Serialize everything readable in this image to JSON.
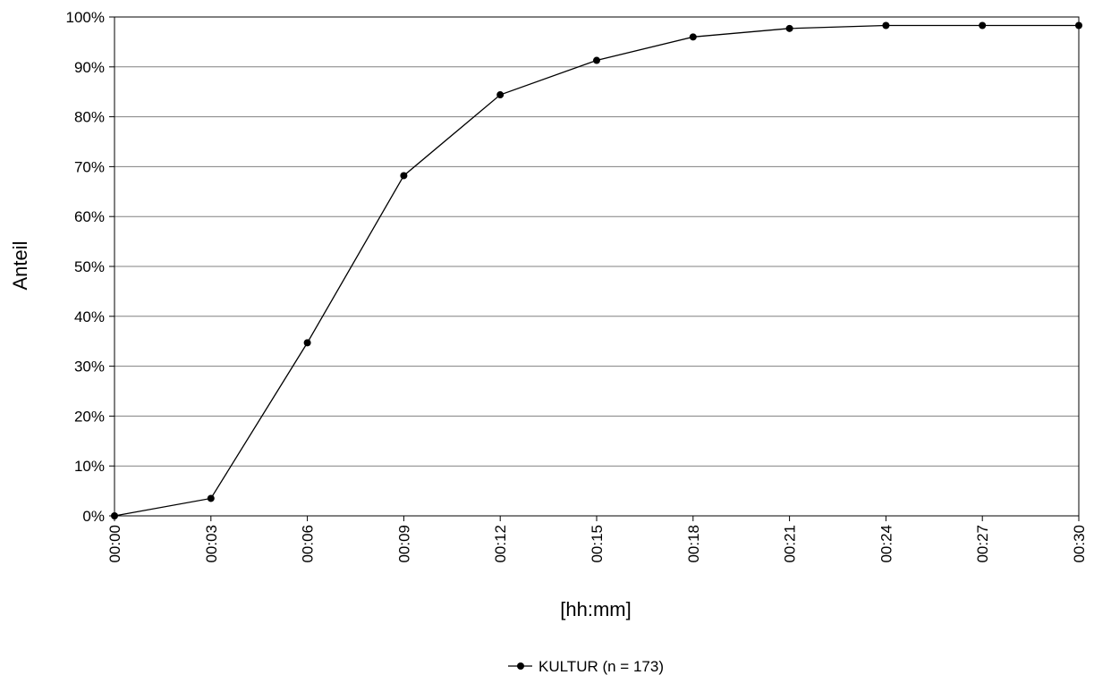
{
  "chart_data": {
    "type": "line",
    "title": "",
    "xlabel": "[hh:mm]",
    "ylabel": "Anteil",
    "categories": [
      "00:00",
      "00:03",
      "00:06",
      "00:09",
      "00:12",
      "00:15",
      "00:18",
      "00:21",
      "00:24",
      "00:27",
      "00:30"
    ],
    "y_ticks": [
      "0%",
      "10%",
      "20%",
      "30%",
      "40%",
      "50%",
      "60%",
      "70%",
      "80%",
      "90%",
      "100%"
    ],
    "ylim": [
      0,
      100
    ],
    "y_unit": "%",
    "grid": true,
    "legend_position": "bottom-center",
    "series": [
      {
        "name": "KULTUR (n = 173)",
        "values": [
          0,
          3.5,
          34.7,
          68.2,
          84.4,
          91.3,
          96.0,
          97.7,
          98.3,
          98.3,
          98.3
        ],
        "color": "#000000",
        "marker": "circle"
      }
    ]
  }
}
